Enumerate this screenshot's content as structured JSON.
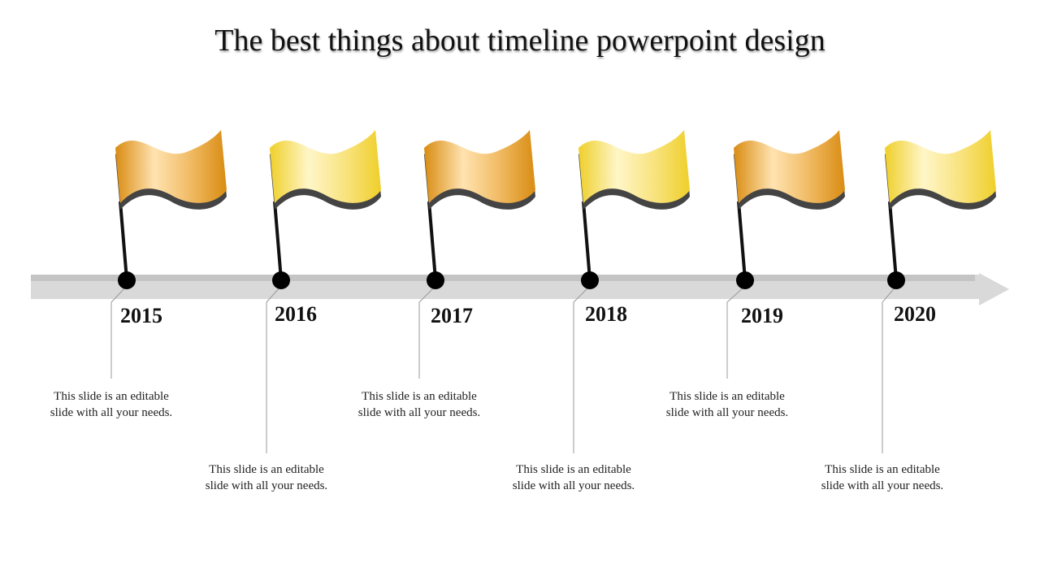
{
  "title": "The best things about timeline powerpoint design",
  "colors": {
    "orange_flag_dark": "#D98C12",
    "orange_flag_light": "#FFE3B0",
    "yellow_flag_dark": "#EFCF2A",
    "yellow_flag_light": "#FFF6C8",
    "arrow": "#D9D9D9",
    "pin": "#000000"
  },
  "milestones": [
    {
      "year": "2015",
      "text": "This slide is an editable slide with all your needs.",
      "flag_color": "orange"
    },
    {
      "year": "2016",
      "text": "This slide is an editable slide with all your needs.",
      "flag_color": "yellow"
    },
    {
      "year": "2017",
      "text": "This slide is an editable slide with all your needs.",
      "flag_color": "orange"
    },
    {
      "year": "2018",
      "text": "This slide is an editable slide with all your needs.",
      "flag_color": "yellow"
    },
    {
      "year": "2019",
      "text": "This slide is an editable slide with all your needs.",
      "flag_color": "orange"
    },
    {
      "year": "2020",
      "text": "This slide is an editable slide with all your needs.",
      "flag_color": "yellow"
    }
  ]
}
